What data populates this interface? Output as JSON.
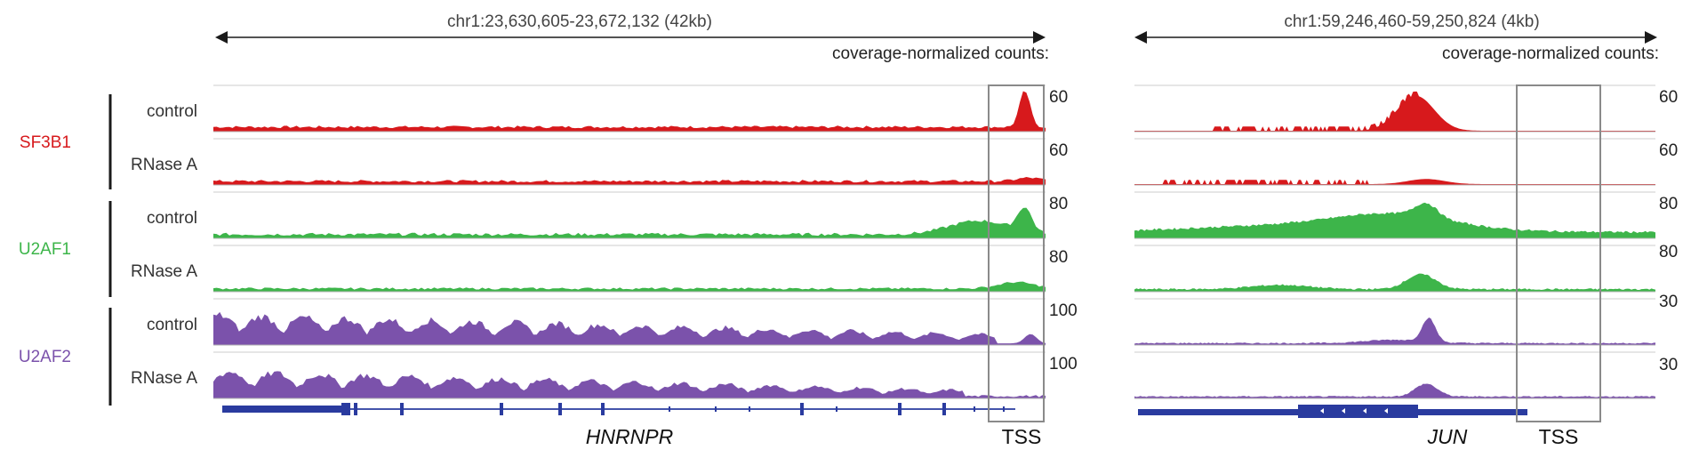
{
  "colors": {
    "sf3b1": "#d7191c",
    "u2af1": "#3db54a",
    "u2af2": "#7b52ab",
    "gene": "#2a3b9f",
    "axis": "#1a1a1a",
    "baseline": "#b3b3b3",
    "box": "#8a8a8a",
    "text": "#333333"
  },
  "groups": [
    {
      "name": "SF3B1",
      "color_key": "sf3b1",
      "conditions": [
        "control",
        "RNase A"
      ]
    },
    {
      "name": "U2AF1",
      "color_key": "u2af1",
      "conditions": [
        "control",
        "RNase A"
      ]
    },
    {
      "name": "U2AF2",
      "color_key": "u2af2",
      "conditions": [
        "control",
        "RNase A"
      ]
    }
  ],
  "panels": [
    {
      "locus": "chr1:23,630,605-23,672,132 (42kb)",
      "coverage_label": "coverage-normalized counts:",
      "scales": [
        "60",
        "60",
        "80",
        "80",
        "100",
        "100"
      ],
      "gene": "HNRNPR",
      "tss_label": "TSS",
      "strand": "minus"
    },
    {
      "locus": "chr1:59,246,460-59,250,824 (4kb)",
      "coverage_label": "coverage-normalized counts:",
      "scales": [
        "60",
        "60",
        "80",
        "80",
        "30",
        "30"
      ],
      "gene": "JUN",
      "tss_label": "TSS",
      "strand": "minus"
    }
  ]
}
